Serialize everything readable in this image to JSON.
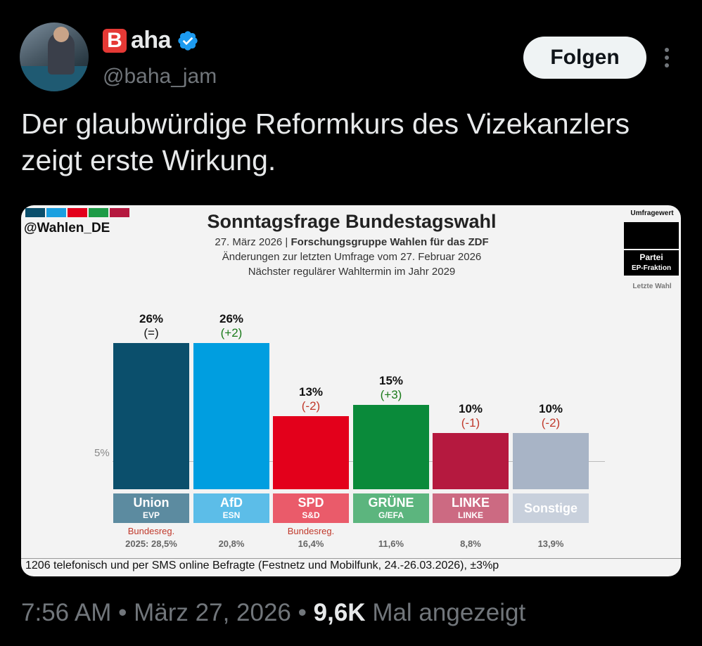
{
  "header": {
    "badge_letter": "B",
    "display_name_rest": "aha",
    "handle": "@baha_jam",
    "follow_label": "Folgen"
  },
  "tweet": {
    "text": "Der glaubwürdige Reformkurs des Vizekanzlers zeigt erste Wirkung."
  },
  "meta": {
    "time": "7:56 AM",
    "date": "März 27, 2026",
    "views": "9,6K",
    "views_label": "Mal angezeigt",
    "separator": "•"
  },
  "icons": {
    "verified": "verified-check-icon",
    "more": "more-dots-icon"
  },
  "card": {
    "source": "@Wahlen_DE",
    "stripe_colors": [
      "#0b4f6c",
      "#1a9fe0",
      "#e3001b",
      "#1e9b47",
      "#b5193f"
    ],
    "subtitle_line1_a": "27. März 2026 | ",
    "subtitle_line1_b": "Forschungsgruppe Wahlen für das ZDF",
    "subtitle_line2": "Änderungen zur letzten Umfrage vom 27. Februar 2026",
    "subtitle_line3": "Nächster regulärer Wahltermin im Jahr 2029",
    "legend_top": "Umfragewert",
    "legend_party": "Partei",
    "legend_faction": "EP-Fraktion",
    "legend_last": "Letzte Wahl",
    "grid_label": "5%",
    "footnote": "1206 telefonisch und per SMS online Befragte (Festnetz und Mobilfunk, 24.-26.03.2026), ±3%p"
  },
  "chart_data": {
    "type": "bar",
    "title": "Sonntagsfrage Bundestagswahl",
    "categories": [
      "Union",
      "AfD",
      "SPD",
      "GRÜNE",
      "LINKE",
      "Sonstige"
    ],
    "values": [
      26,
      26,
      13,
      15,
      10,
      10
    ],
    "value_labels": [
      "26%",
      "26%",
      "13%",
      "15%",
      "10%",
      "10%"
    ],
    "changes": [
      "(=)",
      "(+2)",
      "(-2)",
      "(+3)",
      "(-1)",
      "(-2)"
    ],
    "change_colors": [
      "#111111",
      "#1a7a1a",
      "#c0392b",
      "#1a7a1a",
      "#c0392b",
      "#c0392b"
    ],
    "factions": [
      "EVP",
      "ESN",
      "S&D",
      "G/EFA",
      "LINKE",
      ""
    ],
    "notes": [
      "Bundesreg.",
      "",
      "Bundesreg.",
      "",
      "",
      ""
    ],
    "last_election": [
      "2025: 28,5%",
      "20,8%",
      "16,4%",
      "11,6%",
      "8,8%",
      "13,9%"
    ],
    "bar_colors": [
      "#0b4f6c",
      "#009ee0",
      "#e3001b",
      "#0a8a3a",
      "#b5193f",
      "#a8b4c6"
    ],
    "label_colors": [
      "#5c8ba0",
      "#5cbde8",
      "#ea5b6a",
      "#5cb57e",
      "#cc6a82",
      "#c8d0dc"
    ],
    "ylim": [
      0,
      30
    ],
    "grid_value": 5
  }
}
